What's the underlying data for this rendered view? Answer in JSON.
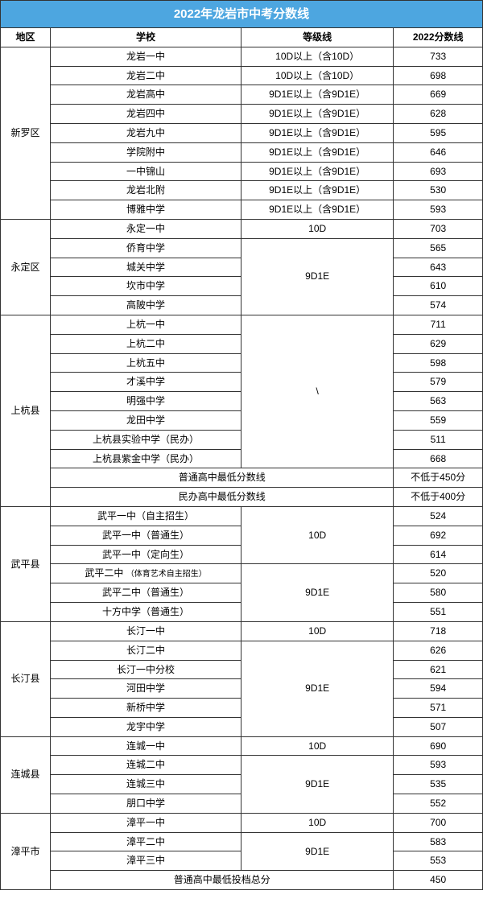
{
  "title": "2022年龙岩市中考分数线",
  "cols": [
    "地区",
    "学校",
    "等级线",
    "2022分数线"
  ],
  "xinluo": {
    "region": "新罗区",
    "rows": [
      [
        "龙岩一中",
        "10D以上（含10D）",
        "733"
      ],
      [
        "龙岩二中",
        "10D以上（含10D）",
        "698"
      ],
      [
        "龙岩高中",
        "9D1E以上（含9D1E）",
        "669"
      ],
      [
        "龙岩四中",
        "9D1E以上（含9D1E）",
        "628"
      ],
      [
        "龙岩九中",
        "9D1E以上（含9D1E）",
        "595"
      ],
      [
        "学院附中",
        "9D1E以上（含9D1E）",
        "646"
      ],
      [
        "一中锦山",
        "9D1E以上（含9D1E）",
        "693"
      ],
      [
        "龙岩北附",
        "9D1E以上（含9D1E）",
        "530"
      ],
      [
        "博雅中学",
        "9D1E以上（含9D1E）",
        "593"
      ]
    ]
  },
  "yongding": {
    "region": "永定区",
    "r1": [
      "永定一中",
      "10D",
      "703"
    ],
    "grade": "9D1E",
    "rows": [
      [
        "侨育中学",
        "565"
      ],
      [
        "城关中学",
        "643"
      ],
      [
        "坎市中学",
        "610"
      ],
      [
        "高陂中学",
        "574"
      ]
    ]
  },
  "shanghang": {
    "region": "上杭县",
    "grade": "\\",
    "rows": [
      [
        "上杭一中",
        "711"
      ],
      [
        "上杭二中",
        "629"
      ],
      [
        "上杭五中",
        "598"
      ],
      [
        "才溪中学",
        "579"
      ],
      [
        "明强中学",
        "563"
      ],
      [
        "龙田中学",
        "559"
      ],
      [
        "上杭县实验中学（民办）",
        "511"
      ],
      [
        "上杭县紫金中学（民办）",
        "668"
      ]
    ],
    "n1": [
      "普通高中最低分数线",
      "不低于450分"
    ],
    "n2": [
      "民办高中最低分数线",
      "不低于400分"
    ]
  },
  "wuping": {
    "region": "武平县",
    "g1": "10D",
    "g2": "9D1E",
    "rows1": [
      [
        "武平一中（自主招生）",
        "524"
      ],
      [
        "武平一中（普通生）",
        "692"
      ],
      [
        "武平一中（定向生）",
        "614"
      ]
    ],
    "r4": [
      "武平二中",
      "（体育艺术自主招生）",
      "520"
    ],
    "rows2": [
      [
        "武平二中（普通生）",
        "580"
      ],
      [
        "十方中学（普通生）",
        "551"
      ]
    ]
  },
  "changting": {
    "region": "长汀县",
    "r1": [
      "长汀一中",
      "10D",
      "718"
    ],
    "grade": "9D1E",
    "rows": [
      [
        "长汀二中",
        "626"
      ],
      [
        "长汀一中分校",
        "621"
      ],
      [
        "河田中学",
        "594"
      ],
      [
        "新桥中学",
        "571"
      ],
      [
        "龙宇中学",
        "507"
      ]
    ]
  },
  "liancheng": {
    "region": "连城县",
    "r1": [
      "连城一中",
      "10D",
      "690"
    ],
    "grade": "9D1E",
    "rows": [
      [
        "连城二中",
        "593"
      ],
      [
        "连城三中",
        "535"
      ],
      [
        "朋口中学",
        "552"
      ]
    ]
  },
  "zhangping": {
    "region": "漳平市",
    "r1": [
      "漳平一中",
      "10D",
      "700"
    ],
    "grade": "9D1E",
    "rows": [
      [
        "漳平二中",
        "583"
      ],
      [
        "漳平三中",
        "553"
      ]
    ],
    "note": [
      "普通高中最低投档总分",
      "450"
    ]
  }
}
